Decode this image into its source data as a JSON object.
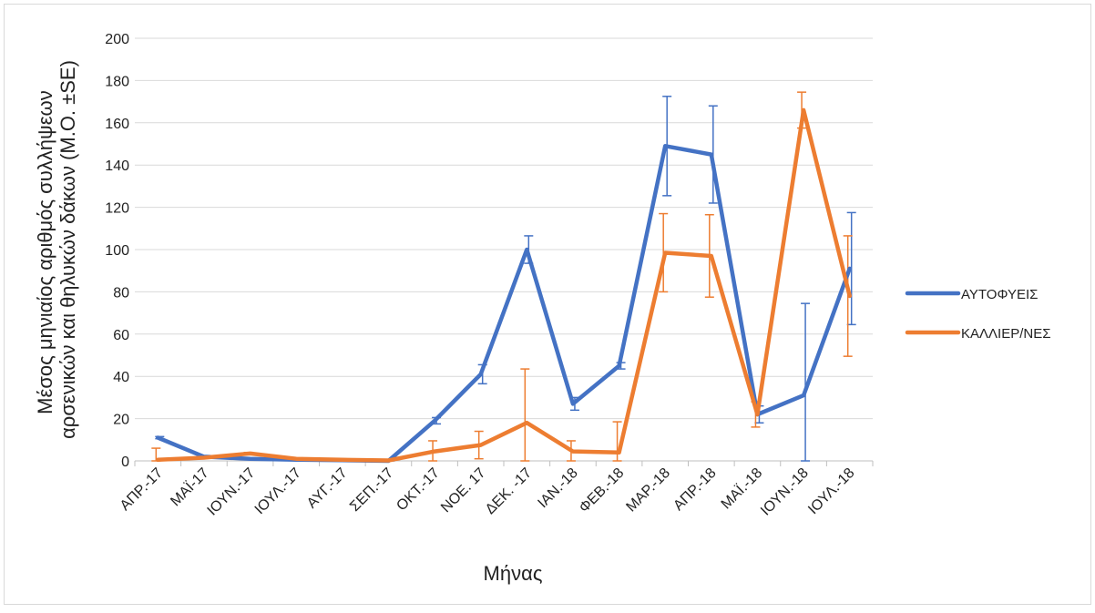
{
  "chart_data": {
    "type": "line",
    "xlabel": "Μήνας",
    "ylabel": [
      "Μέσος μηνιαίος αριθμός συλλήψεων",
      "αρσενικών και θηλυκών δάκων (Μ.Ο. ±SE)"
    ],
    "categories": [
      "ΑΠΡ.-17",
      "ΜΑΪ-17",
      "ΙΟΥΝ.-17",
      "ΙΟΥΛ.-17",
      "ΑΥΓ.-17",
      "ΣΕΠ.-17",
      "ΟΚΤ.-17",
      "ΝΟΕ. 17",
      "ΔΕΚ. -17",
      "ΙΑΝ.-18",
      "ΦΕΒ.-18",
      "ΜΑΡ.-18",
      "ΑΠΡ.-18",
      "ΜΑΪ.-18",
      "ΙΟΥΝ.-18",
      "ΙΟΥΛ.-18"
    ],
    "ylim": [
      0,
      200
    ],
    "yticks": [
      0,
      20,
      40,
      60,
      80,
      100,
      120,
      140,
      160,
      180,
      200
    ],
    "grid": true,
    "legend_position": "right",
    "series": [
      {
        "name": "ΑΥΤΟΦΥΕΙΣ",
        "color": "#4472c4",
        "values": [
          11,
          2,
          1,
          0.5,
          0.3,
          0,
          19,
          41,
          100,
          27,
          45,
          149,
          145,
          22,
          31,
          91
        ],
        "errors": [
          0.5,
          0.5,
          0.3,
          0.2,
          0.1,
          0.2,
          1.5,
          4.5,
          6.5,
          3,
          1.5,
          23.5,
          23,
          4,
          43.5,
          26.5
        ]
      },
      {
        "name": "ΚΑΛΛΙΕΡ/ΝΕΣ",
        "color": "#ed7d31",
        "values": [
          0.5,
          1.5,
          3.5,
          1,
          0.5,
          0.2,
          4.5,
          7.5,
          18,
          4.5,
          4,
          98.5,
          97,
          22,
          166,
          78
        ],
        "errors": [
          5.5,
          0.5,
          0.5,
          0.2,
          0.1,
          0.1,
          5,
          6.5,
          25.5,
          5,
          14.5,
          18.5,
          19.5,
          6,
          8.5,
          28.5
        ]
      }
    ]
  }
}
